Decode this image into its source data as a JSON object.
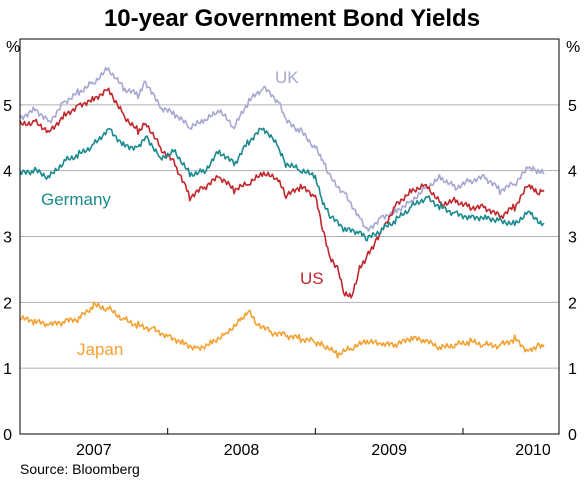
{
  "chart_data": {
    "type": "line",
    "title": "10-year Government Bond Yields",
    "y_unit_left": "%",
    "y_unit_right": "%",
    "source": "Source: Bloomberg",
    "ylim": [
      0,
      6
    ],
    "yticks": [
      0,
      1,
      2,
      3,
      4,
      5
    ],
    "xlim": [
      2006.5,
      2010.15
    ],
    "x_tick_labels": [
      {
        "label": "2007",
        "x": 2007.0
      },
      {
        "label": "2008",
        "x": 2008.0
      },
      {
        "label": "2009",
        "x": 2009.0
      },
      {
        "label": "2010",
        "x": 2010.0
      }
    ],
    "x_year_boundaries": [
      2007.5,
      2008.5,
      2009.5
    ],
    "grid": true,
    "series": [
      {
        "name": "UK",
        "color": "#a7a7d2",
        "x": [
          2006.5,
          2006.6,
          2006.7,
          2006.8,
          2006.9,
          2007.0,
          2007.1,
          2007.2,
          2007.3,
          2007.35,
          2007.45,
          2007.55,
          2007.65,
          2007.75,
          2007.85,
          2007.95,
          2008.05,
          2008.15,
          2008.25,
          2008.3,
          2008.4,
          2008.5,
          2008.55,
          2008.6,
          2008.7,
          2008.8,
          2008.85,
          2008.95,
          2009.05,
          2009.15,
          2009.25,
          2009.35,
          2009.45,
          2009.55,
          2009.65,
          2009.75,
          2009.85,
          2009.95,
          2010.0,
          2010.05
        ],
        "y": [
          4.8,
          4.95,
          4.75,
          5.05,
          5.2,
          5.35,
          5.55,
          5.25,
          5.15,
          5.35,
          4.95,
          4.85,
          4.65,
          4.75,
          4.9,
          4.65,
          5.05,
          5.25,
          5.05,
          4.75,
          4.6,
          4.35,
          4.15,
          3.9,
          3.65,
          3.3,
          3.1,
          3.3,
          3.4,
          3.55,
          3.75,
          3.9,
          3.75,
          3.85,
          3.9,
          3.7,
          3.8,
          4.05,
          4.0,
          3.95
        ]
      },
      {
        "name": "US",
        "color": "#c1272d",
        "x": [
          2006.5,
          2006.6,
          2006.7,
          2006.8,
          2006.9,
          2007.0,
          2007.1,
          2007.2,
          2007.3,
          2007.35,
          2007.45,
          2007.55,
          2007.65,
          2007.75,
          2007.85,
          2007.95,
          2008.05,
          2008.15,
          2008.25,
          2008.3,
          2008.4,
          2008.5,
          2008.55,
          2008.6,
          2008.65,
          2008.7,
          2008.75,
          2008.8,
          2008.85,
          2008.9,
          2008.95,
          2009.05,
          2009.15,
          2009.25,
          2009.35,
          2009.45,
          2009.55,
          2009.65,
          2009.75,
          2009.85,
          2009.95,
          2010.0,
          2010.05
        ],
        "y": [
          4.7,
          4.75,
          4.6,
          4.85,
          5.0,
          5.1,
          5.25,
          4.85,
          4.6,
          4.75,
          4.35,
          4.1,
          3.6,
          3.75,
          3.9,
          3.7,
          3.8,
          3.95,
          3.85,
          3.6,
          3.75,
          3.6,
          3.1,
          2.65,
          2.5,
          2.1,
          2.1,
          2.5,
          2.7,
          2.9,
          3.1,
          3.5,
          3.7,
          3.8,
          3.5,
          3.55,
          3.45,
          3.45,
          3.3,
          3.45,
          3.8,
          3.65,
          3.7
        ]
      },
      {
        "name": "Germany",
        "color": "#1a8a8f",
        "x": [
          2006.5,
          2006.6,
          2006.7,
          2006.8,
          2006.9,
          2007.0,
          2007.1,
          2007.2,
          2007.3,
          2007.35,
          2007.45,
          2007.55,
          2007.65,
          2007.75,
          2007.85,
          2007.95,
          2008.05,
          2008.15,
          2008.25,
          2008.3,
          2008.4,
          2008.5,
          2008.55,
          2008.6,
          2008.7,
          2008.8,
          2008.85,
          2008.95,
          2009.05,
          2009.15,
          2009.25,
          2009.35,
          2009.45,
          2009.55,
          2009.65,
          2009.75,
          2009.85,
          2009.95,
          2010.0,
          2010.05
        ],
        "y": [
          3.95,
          4.0,
          3.9,
          4.15,
          4.25,
          4.4,
          4.65,
          4.4,
          4.35,
          4.55,
          4.2,
          4.3,
          3.95,
          4.0,
          4.3,
          4.1,
          4.45,
          4.65,
          4.35,
          4.1,
          4.0,
          3.9,
          3.5,
          3.3,
          3.1,
          3.05,
          2.95,
          3.1,
          3.25,
          3.45,
          3.6,
          3.45,
          3.35,
          3.3,
          3.3,
          3.25,
          3.2,
          3.4,
          3.25,
          3.2
        ]
      },
      {
        "name": "Japan",
        "color": "#f3a132",
        "x": [
          2006.5,
          2006.6,
          2006.7,
          2006.8,
          2006.9,
          2007.0,
          2007.1,
          2007.2,
          2007.3,
          2007.4,
          2007.5,
          2007.6,
          2007.7,
          2007.8,
          2007.9,
          2008.0,
          2008.05,
          2008.1,
          2008.2,
          2008.3,
          2008.4,
          2008.5,
          2008.55,
          2008.65,
          2008.75,
          2008.85,
          2008.95,
          2009.05,
          2009.15,
          2009.25,
          2009.35,
          2009.45,
          2009.55,
          2009.65,
          2009.75,
          2009.85,
          2009.95,
          2010.0,
          2010.05
        ],
        "y": [
          1.75,
          1.7,
          1.65,
          1.7,
          1.75,
          1.95,
          1.9,
          1.75,
          1.65,
          1.6,
          1.5,
          1.4,
          1.3,
          1.4,
          1.55,
          1.75,
          1.9,
          1.7,
          1.55,
          1.5,
          1.45,
          1.4,
          1.35,
          1.2,
          1.3,
          1.4,
          1.35,
          1.35,
          1.45,
          1.4,
          1.3,
          1.35,
          1.4,
          1.35,
          1.35,
          1.45,
          1.25,
          1.35,
          1.35
        ]
      }
    ]
  }
}
